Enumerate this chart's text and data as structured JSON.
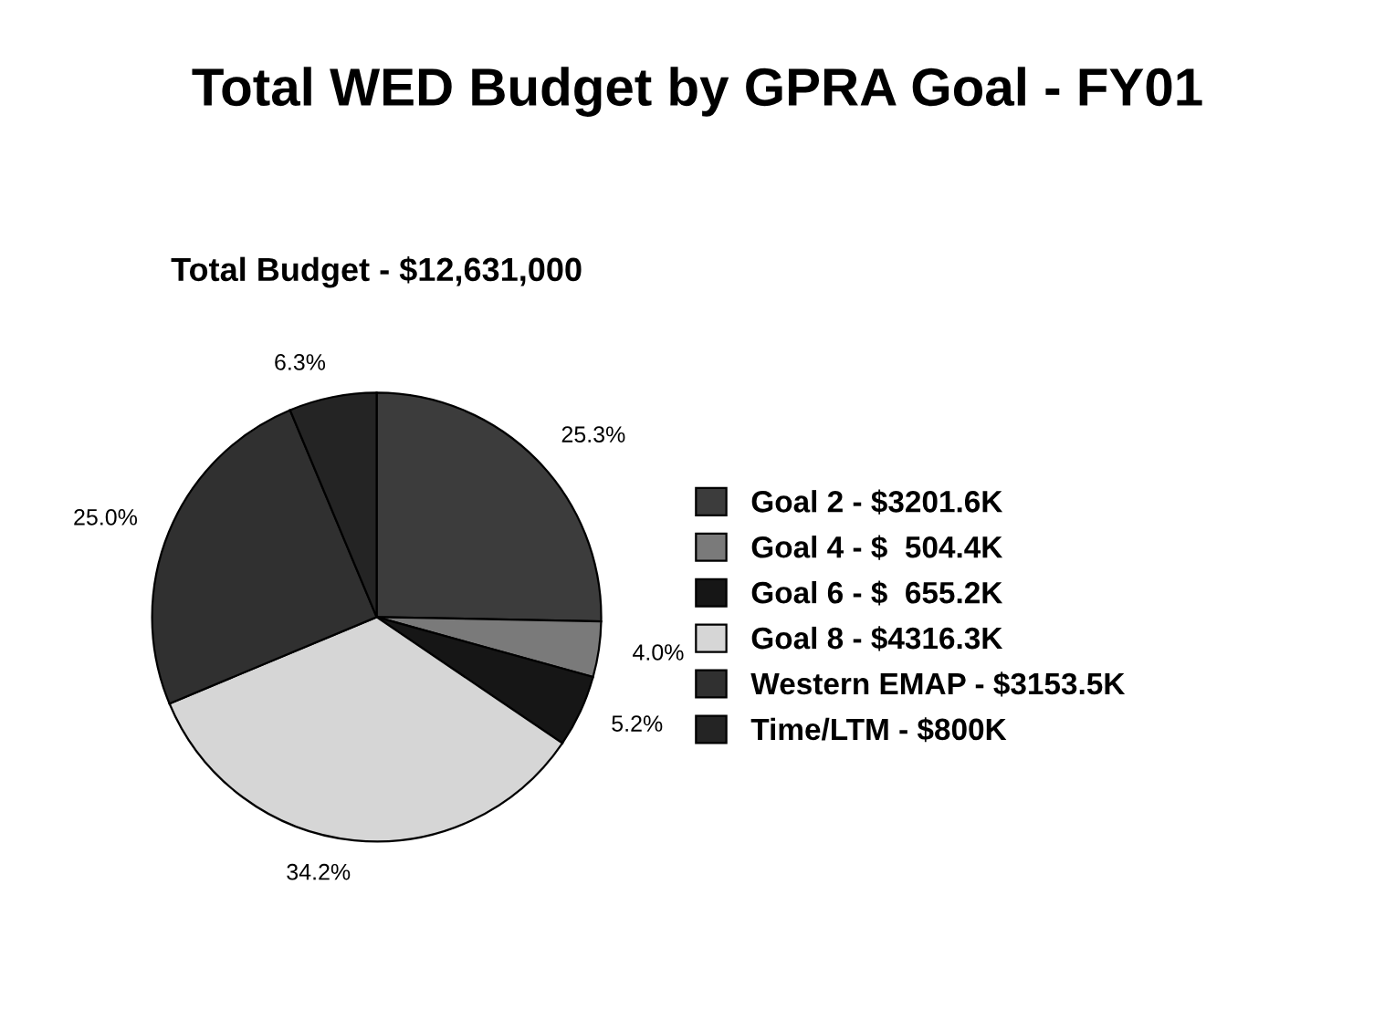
{
  "chart_data": {
    "type": "pie",
    "title": "Total WED Budget by GPRA Goal - FY01",
    "subtitle": "Total Budget - $12,631,000",
    "categories": [
      "Goal 2 - $3201.6K",
      "Goal 4 - $  504.4K",
      "Goal 6 - $  655.2K",
      "Goal 8 - $4316.3K",
      "Western EMAP - $3153.5K",
      "Time/LTM - $800K"
    ],
    "values": [
      25.3,
      4.0,
      5.2,
      34.2,
      25.0,
      6.3
    ],
    "value_labels": [
      "25.3%",
      "4.0%",
      "5.2%",
      "34.2%",
      "25.0%",
      "6.3%"
    ],
    "colors": [
      "#3c3c3c",
      "#7a7a7a",
      "#161616",
      "#d6d6d6",
      "#303030",
      "#242424"
    ],
    "legend": "right"
  }
}
